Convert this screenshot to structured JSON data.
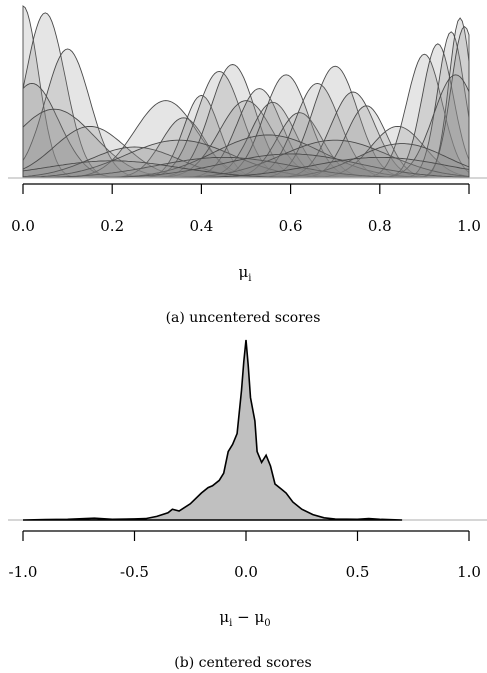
{
  "chart_data": [
    {
      "type": "area",
      "caption": "(a) uncentered scores",
      "xlabel": "μ",
      "xlabel_sub": "i",
      "xlim": [
        0,
        1
      ],
      "xticks": [
        "0.0",
        "0.2",
        "0.4",
        "0.6",
        "0.8",
        "1.0"
      ],
      "tick_values": [
        0,
        0.2,
        0.4,
        0.6,
        0.8,
        1.0
      ],
      "grid": false,
      "series_style": "many overlapping semi-transparent grey density curves",
      "fill_color": "#8a8a8a",
      "line_color": "#4a4a4a",
      "baseline_color": "#bdbdbd",
      "densities": [
        {
          "mean": 0.0,
          "sd": 0.035,
          "height": 1.0
        },
        {
          "mean": 0.05,
          "sd": 0.045,
          "height": 0.96
        },
        {
          "mean": 0.1,
          "sd": 0.05,
          "height": 0.75
        },
        {
          "mean": 0.02,
          "sd": 0.06,
          "height": 0.55
        },
        {
          "mean": 0.07,
          "sd": 0.09,
          "height": 0.4
        },
        {
          "mean": 0.15,
          "sd": 0.08,
          "height": 0.3
        },
        {
          "mean": 0.32,
          "sd": 0.07,
          "height": 0.45
        },
        {
          "mean": 0.36,
          "sd": 0.05,
          "height": 0.35
        },
        {
          "mean": 0.4,
          "sd": 0.04,
          "height": 0.48
        },
        {
          "mean": 0.44,
          "sd": 0.05,
          "height": 0.62
        },
        {
          "mean": 0.47,
          "sd": 0.05,
          "height": 0.66
        },
        {
          "mean": 0.5,
          "sd": 0.06,
          "height": 0.45
        },
        {
          "mean": 0.53,
          "sd": 0.05,
          "height": 0.52
        },
        {
          "mean": 0.56,
          "sd": 0.05,
          "height": 0.44
        },
        {
          "mean": 0.59,
          "sd": 0.05,
          "height": 0.6
        },
        {
          "mean": 0.62,
          "sd": 0.05,
          "height": 0.38
        },
        {
          "mean": 0.66,
          "sd": 0.05,
          "height": 0.55
        },
        {
          "mean": 0.7,
          "sd": 0.05,
          "height": 0.65
        },
        {
          "mean": 0.74,
          "sd": 0.05,
          "height": 0.5
        },
        {
          "mean": 0.77,
          "sd": 0.045,
          "height": 0.42
        },
        {
          "mean": 0.84,
          "sd": 0.06,
          "height": 0.3
        },
        {
          "mean": 0.9,
          "sd": 0.04,
          "height": 0.72
        },
        {
          "mean": 0.93,
          "sd": 0.035,
          "height": 0.78
        },
        {
          "mean": 0.96,
          "sd": 0.03,
          "height": 0.85
        },
        {
          "mean": 0.98,
          "sd": 0.025,
          "height": 0.93
        },
        {
          "mean": 0.99,
          "sd": 0.03,
          "height": 0.88
        },
        {
          "mean": 0.97,
          "sd": 0.05,
          "height": 0.6
        },
        {
          "mean": 0.25,
          "sd": 0.1,
          "height": 0.18
        },
        {
          "mean": 0.35,
          "sd": 0.12,
          "height": 0.22
        },
        {
          "mean": 0.55,
          "sd": 0.12,
          "height": 0.25
        },
        {
          "mean": 0.7,
          "sd": 0.12,
          "height": 0.22
        },
        {
          "mean": 0.85,
          "sd": 0.1,
          "height": 0.2
        },
        {
          "mean": 0.45,
          "sd": 0.15,
          "height": 0.12
        },
        {
          "mean": 0.6,
          "sd": 0.15,
          "height": 0.14
        },
        {
          "mean": 0.2,
          "sd": 0.15,
          "height": 0.1
        },
        {
          "mean": 0.8,
          "sd": 0.15,
          "height": 0.12
        }
      ]
    },
    {
      "type": "area",
      "caption": "(b) centered scores",
      "xlabel": "μ",
      "xlabel_sub": "i",
      "xlabel_suffix": " − μ",
      "xlabel_suffix_sub": "0",
      "xlim": [
        -1,
        1
      ],
      "xticks": [
        "-1.0",
        "-0.5",
        "0.0",
        "0.5",
        "1.0"
      ],
      "tick_values": [
        -1.0,
        -0.5,
        0.0,
        0.5,
        1.0
      ],
      "grid": false,
      "fill_color": "#c0c0c0",
      "line_color": "#000000",
      "baseline_color": "#bdbdbd",
      "density": {
        "x": [
          -1.0,
          -0.9,
          -0.8,
          -0.72,
          -0.68,
          -0.6,
          -0.5,
          -0.45,
          -0.4,
          -0.35,
          -0.33,
          -0.3,
          -0.25,
          -0.2,
          -0.17,
          -0.15,
          -0.12,
          -0.1,
          -0.08,
          -0.06,
          -0.04,
          -0.02,
          -0.01,
          0.0,
          0.01,
          0.02,
          0.04,
          0.05,
          0.07,
          0.09,
          0.11,
          0.13,
          0.16,
          0.18,
          0.21,
          0.25,
          0.3,
          0.35,
          0.4,
          0.5,
          0.55,
          0.6,
          0.7
        ],
        "y": [
          0.0,
          0.002,
          0.004,
          0.008,
          0.01,
          0.004,
          0.006,
          0.008,
          0.02,
          0.04,
          0.06,
          0.05,
          0.09,
          0.15,
          0.18,
          0.19,
          0.22,
          0.26,
          0.38,
          0.42,
          0.48,
          0.72,
          0.88,
          1.0,
          0.86,
          0.68,
          0.55,
          0.38,
          0.32,
          0.36,
          0.3,
          0.2,
          0.17,
          0.15,
          0.1,
          0.06,
          0.03,
          0.012,
          0.005,
          0.004,
          0.008,
          0.004,
          0.0
        ]
      }
    }
  ]
}
